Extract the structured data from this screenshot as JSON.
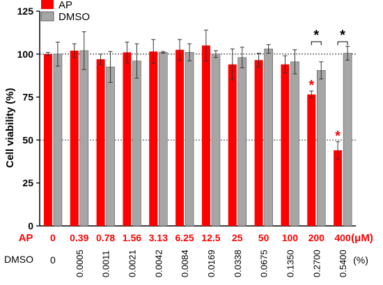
{
  "chart_data": {
    "type": "bar",
    "ylabel": "Cell viability (%)",
    "ylim": [
      0,
      125
    ],
    "yticks": [
      0,
      25,
      50,
      75,
      100,
      125
    ],
    "reference_lines": [
      100,
      50
    ],
    "legend": {
      "placement": "top-left",
      "entries": [
        "AP",
        "DMSO"
      ]
    },
    "categories": [
      "0",
      "0.39",
      "0.78",
      "1.56",
      "3.13",
      "6.25",
      "12.5",
      "25",
      "50",
      "100",
      "200",
      "400"
    ],
    "dmso_labels": [
      "0",
      "0.0005",
      "0.0011",
      "0.0021",
      "0.0042",
      "0.0084",
      "0.0169",
      "0.0338",
      "0.0675",
      "0.1350",
      "0.2700",
      "0.5400"
    ],
    "row_labels": {
      "ap": "AP",
      "ap_unit": "(μM)",
      "dmso": "DMSO",
      "dmso_unit": "(%)"
    },
    "series": [
      {
        "name": "AP",
        "color": "#ff0000",
        "values": [
          100,
          102,
          97,
          101,
          101.5,
          102.5,
          105,
          94,
          96.5,
          94,
          76.5,
          44
        ],
        "errors": [
          1,
          4,
          3,
          6,
          7,
          6,
          9,
          9,
          4,
          5,
          2,
          5
        ]
      },
      {
        "name": "DMSO",
        "color": "#a6a6a6",
        "values": [
          100,
          102,
          92.5,
          96,
          101,
          101,
          100,
          98,
          103,
          95.5,
          90.5,
          100.5
        ],
        "errors": [
          7,
          11,
          9,
          10,
          0.5,
          5,
          2,
          6,
          2.5,
          7,
          5,
          4
        ]
      }
    ],
    "significance": {
      "symbol": "*",
      "ap_markers": [
        10,
        11
      ],
      "brackets": [
        10,
        11
      ]
    }
  }
}
